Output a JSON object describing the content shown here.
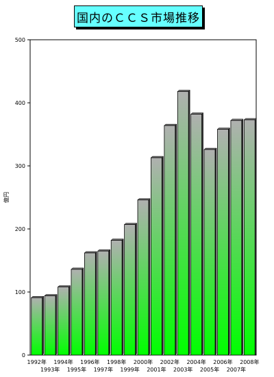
{
  "title": "国内のＣＣＳ市場推移",
  "colors": {
    "plot_bg": "#ffffff",
    "bar_top": "#b0b0b0",
    "bar_bottom": "#00ff00"
  },
  "chart_data": {
    "type": "bar",
    "title": "国内のＣＣＳ市場推移",
    "ylabel": "億円",
    "xlabel": "",
    "ylim": [
      0,
      500
    ],
    "yticks": [
      0,
      100,
      200,
      300,
      400,
      500
    ],
    "grid": false,
    "categories": [
      "1992年",
      "1993年",
      "1994年",
      "1995年",
      "1996年",
      "1997年",
      "1998年",
      "1999年",
      "2000年",
      "2001年",
      "2002年",
      "2003年",
      "2004年",
      "2005年",
      "2006年",
      "2007年",
      "2008年"
    ],
    "values": [
      91,
      94,
      108,
      136,
      162,
      165,
      182,
      207,
      246,
      313,
      364,
      418,
      382,
      326,
      358,
      372,
      373
    ]
  }
}
